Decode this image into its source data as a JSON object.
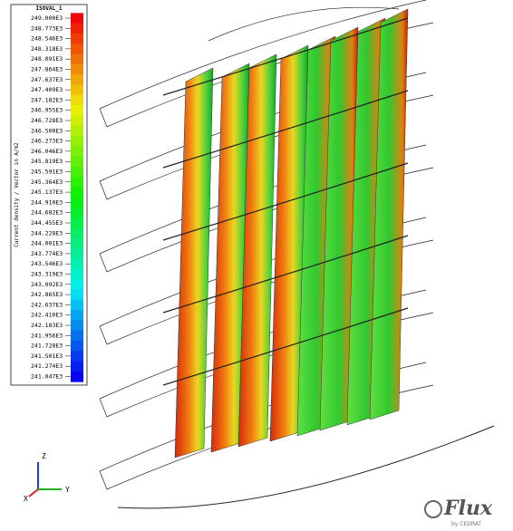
{
  "legend": {
    "title": "ISOVAL_1",
    "quantity": "Current density / Vector in A/m2",
    "labels": [
      "249.000E3",
      "248.773E3",
      "248.546E3",
      "248.318E3",
      "248.091E3",
      "247.864E3",
      "247.637E3",
      "247.409E3",
      "247.182E3",
      "246.955E3",
      "246.728E3",
      "246.500E3",
      "246.273E3",
      "246.046E3",
      "245.819E3",
      "245.591E3",
      "245.364E3",
      "245.137E3",
      "244.910E3",
      "244.682E3",
      "244.455E3",
      "244.228E3",
      "244.001E3",
      "243.774E3",
      "243.546E3",
      "243.319E3",
      "243.092E3",
      "242.865E3",
      "242.637E3",
      "242.410E3",
      "242.183E3",
      "241.956E3",
      "241.728E3",
      "241.501E3",
      "241.274E3",
      "241.047E3"
    ]
  },
  "triad": {
    "z": "Z",
    "x": "X",
    "y": "Y"
  },
  "logo": {
    "name": "Flux",
    "by": "by CEDRAT"
  }
}
